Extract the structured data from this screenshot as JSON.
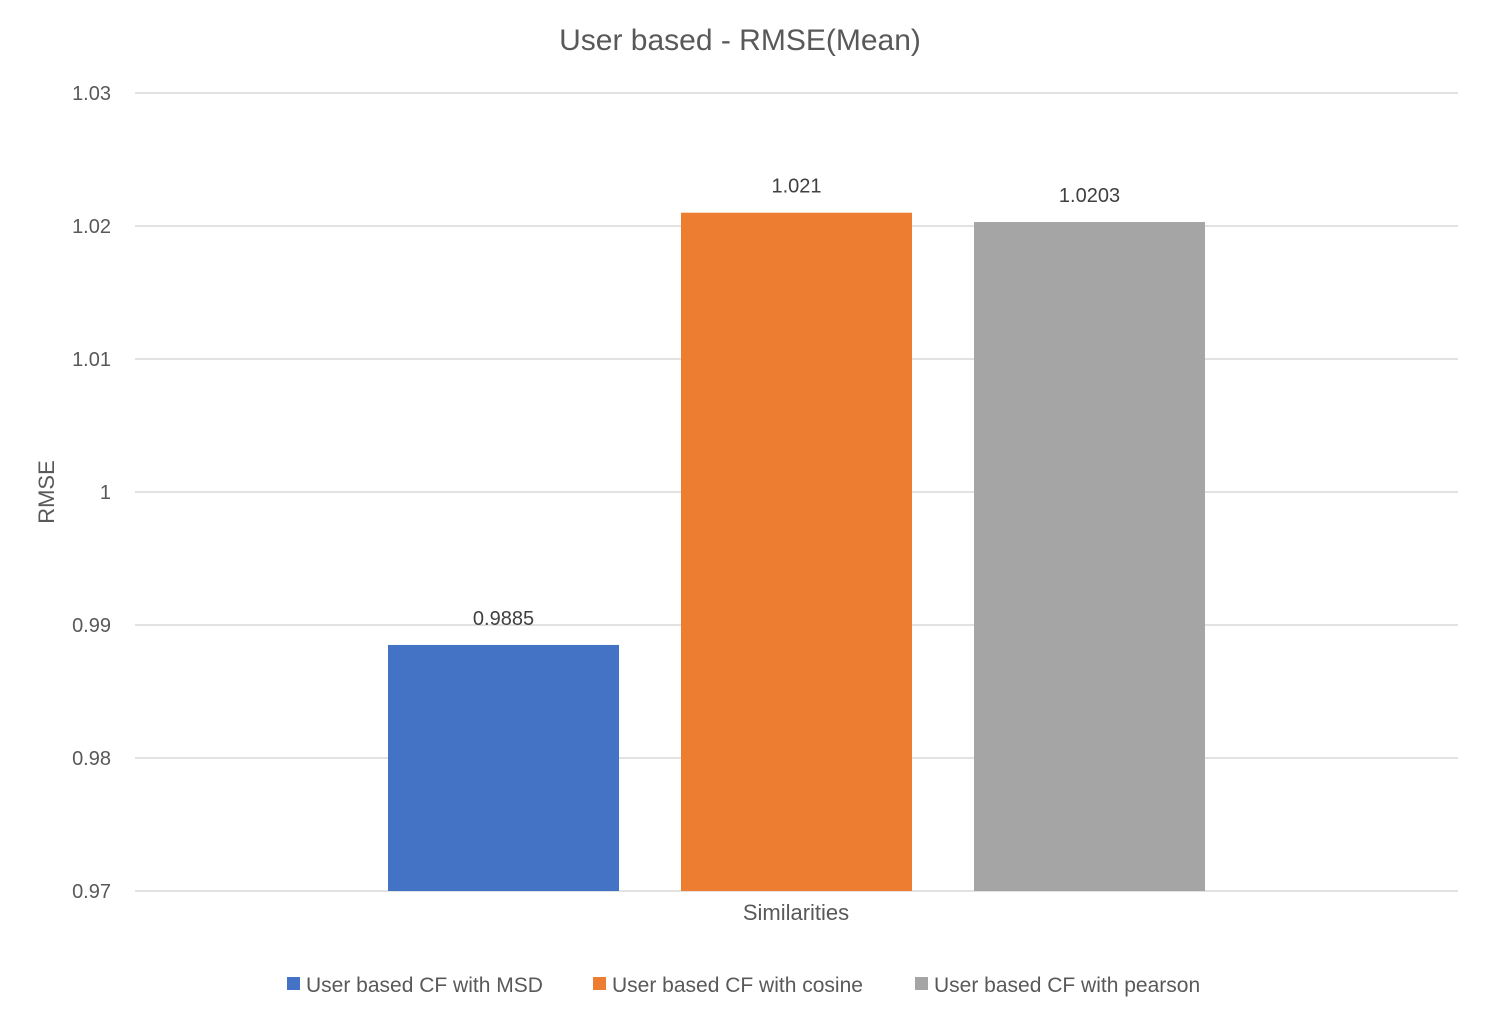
{
  "chart_data": {
    "type": "bar",
    "title": "User based - RMSE(Mean)",
    "xlabel": "Similarities",
    "ylabel": "RMSE",
    "ylim": [
      0.97,
      1.03
    ],
    "yticks": [
      "0.97",
      "0.98",
      "0.99",
      "1",
      "1.01",
      "1.02",
      "1.03"
    ],
    "grid": true,
    "legend_position": "bottom",
    "categories": [
      "Similarities"
    ],
    "series": [
      {
        "name": "User based CF with MSD",
        "values": [
          0.9885
        ],
        "label": "0.9885",
        "color": "#4472C4"
      },
      {
        "name": "User based CF with cosine",
        "values": [
          1.021
        ],
        "label": "1.021",
        "color": "#ED7D31"
      },
      {
        "name": "User based CF with pearson",
        "values": [
          1.0203
        ],
        "label": "1.0203",
        "color": "#A5A5A5"
      }
    ]
  }
}
